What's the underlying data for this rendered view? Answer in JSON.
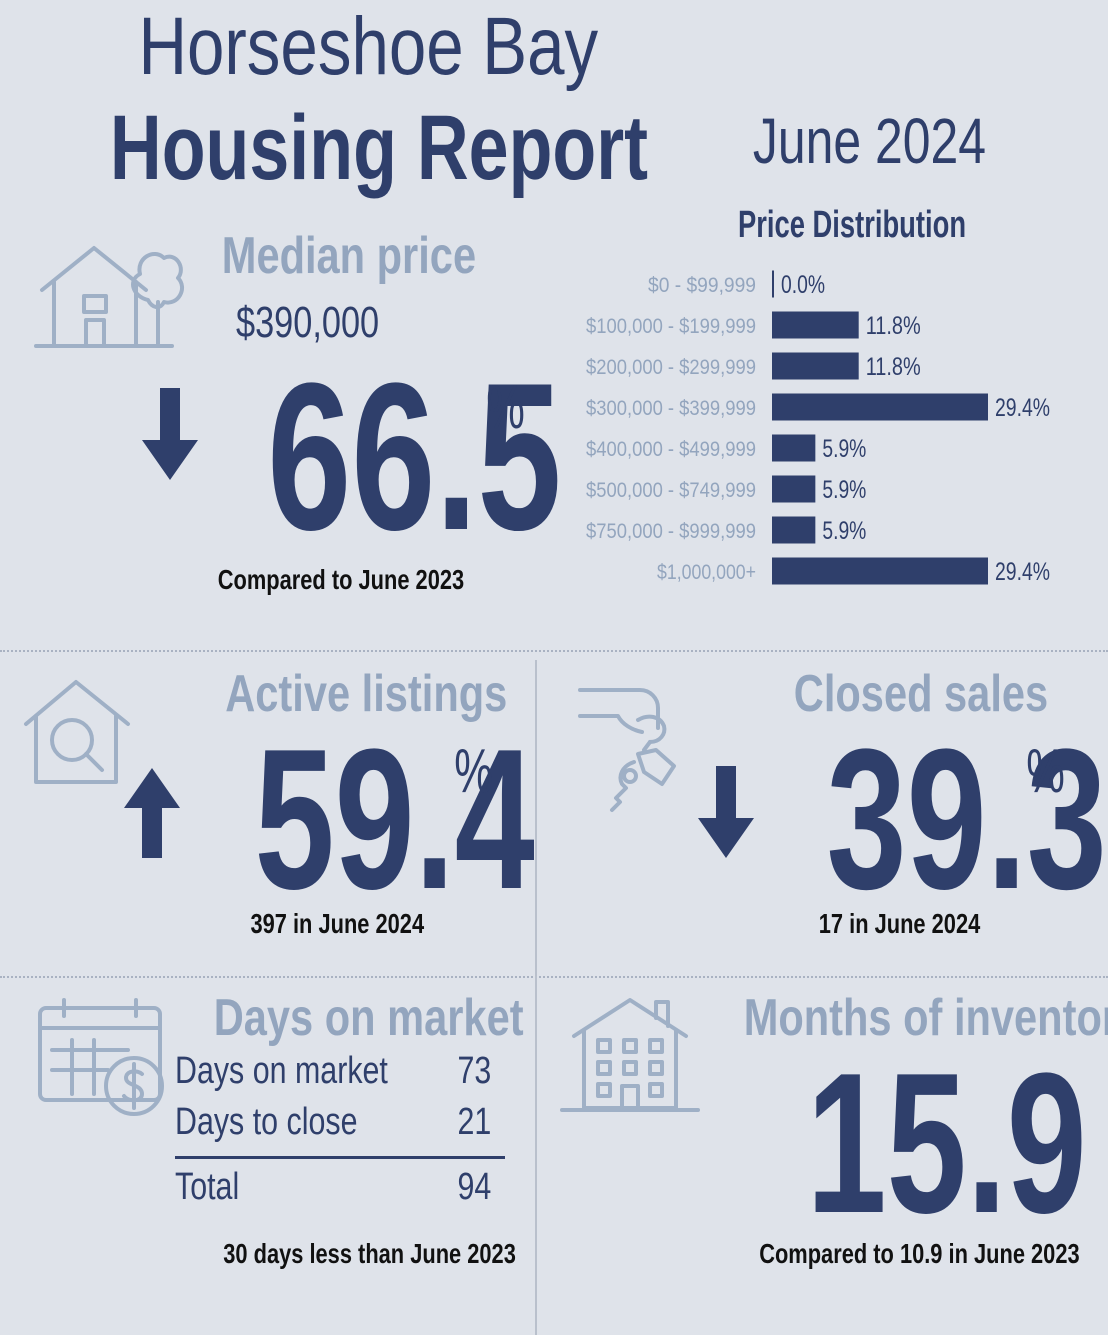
{
  "header": {
    "title_line1": "Horseshoe Bay",
    "title_line2": "Housing Report",
    "month": "June 2024"
  },
  "median_price": {
    "heading": "Median price",
    "value": "$390,000",
    "change": "66.5",
    "percent_sign": "%",
    "direction": "down",
    "note": "Compared to June 2023"
  },
  "active_listings": {
    "heading": "Active listings",
    "change": "59.4",
    "percent_sign": "%",
    "direction": "up",
    "note": "397 in June 2024"
  },
  "closed_sales": {
    "heading": "Closed sales",
    "change": "39.3",
    "percent_sign": "%",
    "direction": "down",
    "note": "17 in June 2024"
  },
  "days_on_market": {
    "heading": "Days on market",
    "rows": [
      {
        "label": "Days on market",
        "value": "73"
      },
      {
        "label": "Days to close",
        "value": "21"
      }
    ],
    "total_label": "Total",
    "total_value": "94",
    "note": "30 days less than June 2023"
  },
  "months_of_inventory": {
    "heading": "Months of inventory",
    "value": "15.9",
    "note": "Compared to 10.9 in June 2023"
  },
  "colors": {
    "navy": "#2f3f6b",
    "light_blue": "#93a5be",
    "background": "#dfe3ea",
    "bar": "#2f3f6b"
  },
  "chart_data": {
    "type": "bar",
    "orientation": "horizontal",
    "title": "Price Distribution",
    "categories": [
      "$0 - $99,999",
      "$100,000 - $199,999",
      "$200,000 - $299,999",
      "$300,000 - $399,999",
      "$400,000 - $499,999",
      "$500,000 - $749,999",
      "$750,000 - $999,999",
      "$1,000,000+"
    ],
    "values": [
      0.0,
      11.8,
      11.8,
      29.4,
      5.9,
      5.9,
      5.9,
      29.4
    ],
    "value_labels": [
      "0.0%",
      "11.8%",
      "11.8%",
      "29.4%",
      "5.9%",
      "5.9%",
      "5.9%",
      "29.4%"
    ],
    "xlim": [
      0,
      29.4
    ],
    "unit": "%"
  }
}
